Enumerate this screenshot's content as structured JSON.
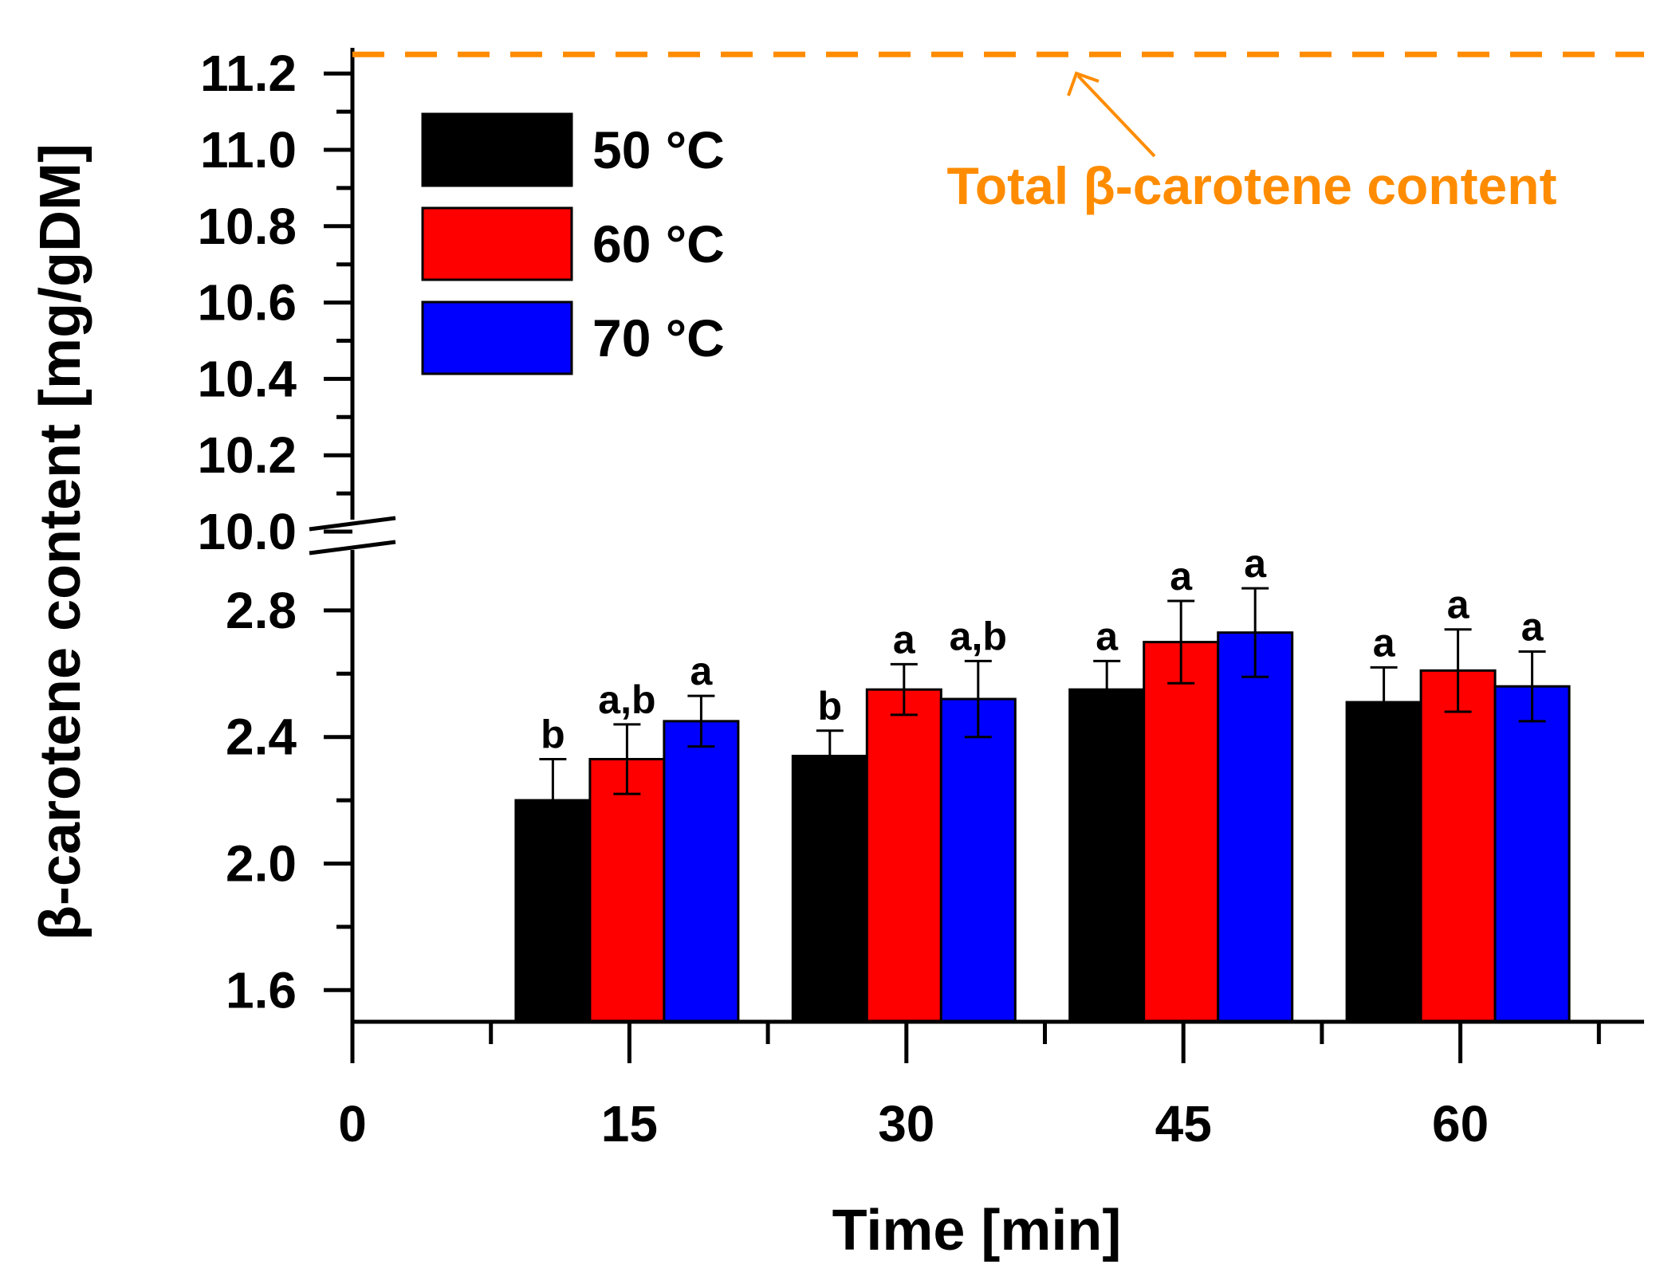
{
  "chart_data": {
    "type": "bar",
    "title": "",
    "xlabel": "Time [min]",
    "ylabel": "β-carotene content [mg/gDM]",
    "x_ticks": [
      "0",
      "15",
      "30",
      "45",
      "60"
    ],
    "categories": [
      "15",
      "30",
      "45",
      "60"
    ],
    "y_lower_range": [
      1.5,
      3.0
    ],
    "y_upper_range": [
      10.0,
      11.2
    ],
    "y_lower_ticks": [
      "1.6",
      "2.0",
      "2.4",
      "2.8"
    ],
    "y_upper_ticks": [
      "10.0",
      "10.2",
      "10.4",
      "10.6",
      "10.8",
      "11.0",
      "11.2"
    ],
    "axis_break_between": [
      2.95,
      10.0
    ],
    "series": [
      {
        "name": "50 °C",
        "color": "#000000",
        "values": [
          2.2,
          2.34,
          2.55,
          2.51
        ],
        "errors": [
          0.13,
          0.08,
          0.09,
          0.11
        ],
        "labels": [
          "b",
          "b",
          "a",
          "a"
        ]
      },
      {
        "name": "60 °C",
        "color": "#ff0000",
        "values": [
          2.33,
          2.55,
          2.7,
          2.61
        ],
        "errors": [
          0.11,
          0.08,
          0.13,
          0.13
        ],
        "labels": [
          "a,b",
          "a",
          "a",
          "a"
        ]
      },
      {
        "name": "70 °C",
        "color": "#0000ff",
        "values": [
          2.45,
          2.52,
          2.73,
          2.56
        ],
        "errors": [
          0.08,
          0.12,
          0.14,
          0.11
        ],
        "labels": [
          "a",
          "a,b",
          "a",
          "a"
        ]
      }
    ],
    "reference_line": {
      "value": 11.25,
      "label": "Total β-carotene content",
      "color": "#ff8c00"
    },
    "legend_position": "top-left",
    "grid": false
  }
}
